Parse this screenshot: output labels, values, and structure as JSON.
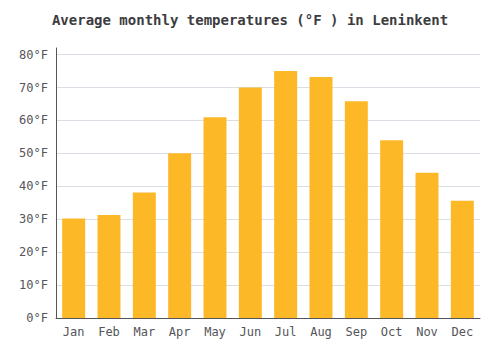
{
  "chart_data": {
    "type": "bar",
    "title": "Average monthly temperatures (°F ) in Leninkent",
    "categories": [
      "Jan",
      "Feb",
      "Mar",
      "Apr",
      "May",
      "Jun",
      "Jul",
      "Aug",
      "Sep",
      "Oct",
      "Nov",
      "Dec"
    ],
    "values": [
      30.2,
      31.3,
      38.1,
      50.0,
      61.0,
      70.0,
      75.0,
      73.2,
      65.8,
      54.0,
      44.1,
      35.6
    ],
    "color": "#FDB827",
    "ylim": [
      0,
      82
    ],
    "yticks": [
      {
        "value": 0,
        "label": "0°F"
      },
      {
        "value": 10,
        "label": "10°F"
      },
      {
        "value": 20,
        "label": "20°F"
      },
      {
        "value": 30,
        "label": "30°F"
      },
      {
        "value": 40,
        "label": "40°F"
      },
      {
        "value": 50,
        "label": "50°F"
      },
      {
        "value": 60,
        "label": "60°F"
      },
      {
        "value": 70,
        "label": "70°F"
      },
      {
        "value": 80,
        "label": "80°F"
      }
    ],
    "grid": true
  }
}
